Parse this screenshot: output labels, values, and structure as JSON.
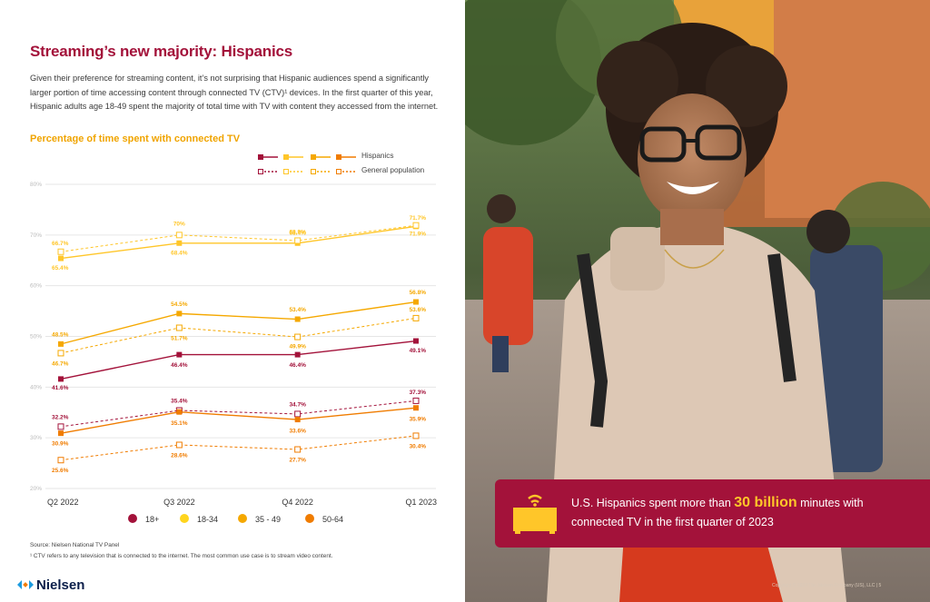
{
  "header": {
    "title": "Streaming’s new majority: Hispanics",
    "intro": "Given their preference for streaming content, it’s not surprising that Hispanic audiences spend a significantly larger portion of time accessing content through connected TV (CTV)¹ devices. In the first quarter of this year, Hispanic adults age 18-49 spent the majority of total time with TV with content they accessed from the internet."
  },
  "chart_data": {
    "type": "line",
    "title": "Percentage of time spent with connected TV",
    "categories": [
      "Q2 2022",
      "Q3 2022",
      "Q4 2022",
      "Q1 2023"
    ],
    "ylim": [
      20,
      80
    ],
    "yticks": [
      "20%",
      "30%",
      "40%",
      "50%",
      "60%",
      "70%",
      "80%"
    ],
    "ytick_values": [
      20,
      30,
      40,
      50,
      60,
      70,
      80
    ],
    "grid": true,
    "series": [
      {
        "name": "Hispanics 18+",
        "group": "Hispanics",
        "age": "18+",
        "color": "#a3123a",
        "style": "solid",
        "values": [
          41.6,
          46.4,
          46.4,
          49.1
        ],
        "labels": [
          "41.6%",
          "46.4%",
          "46.4%",
          "49.1%"
        ]
      },
      {
        "name": "General population 18+",
        "group": "General population",
        "age": "18+",
        "color": "#a3123a",
        "style": "dashed",
        "values": [
          32.2,
          35.4,
          34.7,
          37.3
        ],
        "labels": [
          "32.2%",
          "35.4%",
          "34.7%",
          "37.3%"
        ]
      },
      {
        "name": "Hispanics 18-34",
        "group": "Hispanics",
        "age": "18-34",
        "color": "#ffc629",
        "style": "solid",
        "values": [
          65.4,
          68.4,
          68.4,
          71.7
        ],
        "labels": [
          "65.4%",
          "68.4%",
          "68.4%",
          "71.7%"
        ]
      },
      {
        "name": "General population 18-34",
        "group": "General population",
        "age": "18-34",
        "color": "#ffc629",
        "style": "dashed",
        "values": [
          66.7,
          70,
          68.9,
          71.9
        ],
        "labels": [
          "66.7%",
          "70%",
          "68.9%",
          "71.9%"
        ]
      },
      {
        "name": "Hispanics 35-49",
        "group": "Hispanics",
        "age": "35 - 49",
        "color": "#f5a800",
        "style": "solid",
        "values": [
          48.5,
          54.5,
          53.4,
          56.8
        ],
        "labels": [
          "48.5%",
          "54.5%",
          "53.4%",
          "56.8%"
        ]
      },
      {
        "name": "General population 35-49",
        "group": "General population",
        "age": "35 - 49",
        "color": "#f5a800",
        "style": "dashed",
        "values": [
          46.7,
          51.7,
          49.9,
          53.6
        ],
        "labels": [
          "46.7%",
          "51.7%",
          "49.9%",
          "53.6%"
        ]
      },
      {
        "name": "Hispanics 50-64",
        "group": "Hispanics",
        "age": "50-64",
        "color": "#f07c00",
        "style": "solid",
        "values": [
          30.9,
          35.1,
          33.6,
          35.9
        ],
        "labels": [
          "30.9%",
          "35.1%",
          "33.6%",
          "35.9%"
        ]
      },
      {
        "name": "General population 50-64",
        "group": "General population",
        "age": "50-64",
        "color": "#f07c00",
        "style": "dashed",
        "values": [
          25.6,
          28.6,
          27.7,
          30.4
        ],
        "labels": [
          "25.6%",
          "28.6%",
          "27.7%",
          "30.4%"
        ]
      }
    ],
    "legend_top": {
      "hispanics": "Hispanics",
      "general": "General population"
    },
    "legend_bottom": [
      {
        "label": "18+",
        "color": "#a3123a"
      },
      {
        "label": "18-34",
        "color": "#ffd51e"
      },
      {
        "label": "35 - 49",
        "color": "#f5a800"
      },
      {
        "label": "50-64",
        "color": "#f07c00"
      }
    ]
  },
  "footer": {
    "source": "Source: Nielsen National TV Panel",
    "footnote": "¹ CTV refers to any television that is connected to the internet. The most common use case is to stream video content.",
    "logo": "Nielsen"
  },
  "callout": {
    "text_before": "U.S. Hispanics spent more than",
    "highlight": "30 billion",
    "text_after": "minutes with connected TV in the first quarter of 2023"
  },
  "colors": {
    "brand": "#a3123a",
    "accent": "#ffc629",
    "orange": "#f07c00"
  },
  "copyright": "Copyright © 2023 The Nielsen Company (US), LLC | 5"
}
